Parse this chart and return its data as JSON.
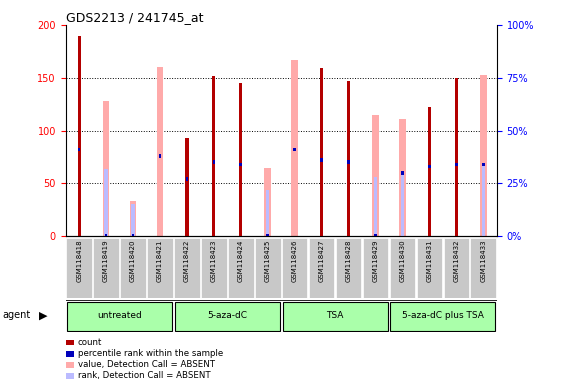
{
  "title": "GDS2213 / 241745_at",
  "samples": [
    "GSM118418",
    "GSM118419",
    "GSM118420",
    "GSM118421",
    "GSM118422",
    "GSM118423",
    "GSM118424",
    "GSM118425",
    "GSM118426",
    "GSM118427",
    "GSM118428",
    "GSM118429",
    "GSM118430",
    "GSM118431",
    "GSM118432",
    "GSM118433"
  ],
  "count_values": [
    190,
    0,
    0,
    0,
    93,
    152,
    145,
    0,
    0,
    159,
    147,
    0,
    0,
    122,
    150,
    0
  ],
  "pink_values": [
    0,
    128,
    33,
    160,
    0,
    0,
    0,
    65,
    167,
    0,
    0,
    115,
    111,
    0,
    0,
    153
  ],
  "blue_pct": [
    41,
    0,
    0,
    38,
    27,
    35,
    34,
    0,
    41,
    36,
    35,
    0,
    30,
    33,
    34,
    34
  ],
  "lavender_pct": [
    0,
    32,
    15,
    0,
    0,
    0,
    0,
    22,
    0,
    0,
    0,
    28,
    29,
    0,
    0,
    34
  ],
  "groups": [
    {
      "label": "untreated",
      "start": 0,
      "end": 3
    },
    {
      "label": "5-aza-dC",
      "start": 4,
      "end": 7
    },
    {
      "label": "TSA",
      "start": 8,
      "end": 11
    },
    {
      "label": "5-aza-dC plus TSA",
      "start": 12,
      "end": 15
    }
  ],
  "ylim_left": [
    0,
    200
  ],
  "ylim_right": [
    0,
    100
  ],
  "yticks_left": [
    0,
    50,
    100,
    150,
    200
  ],
  "yticks_right": [
    0,
    25,
    50,
    75,
    100
  ],
  "ytick_labels_right": [
    "0%",
    "25%",
    "50%",
    "75%",
    "100%"
  ],
  "color_count": "#b30000",
  "color_pink": "#ffaaaa",
  "color_blue": "#0000bb",
  "color_lavender": "#bbbbff",
  "group_color": "#aaffaa",
  "label_bg": "#c8c8c8",
  "fig_width": 5.71,
  "fig_height": 3.84
}
